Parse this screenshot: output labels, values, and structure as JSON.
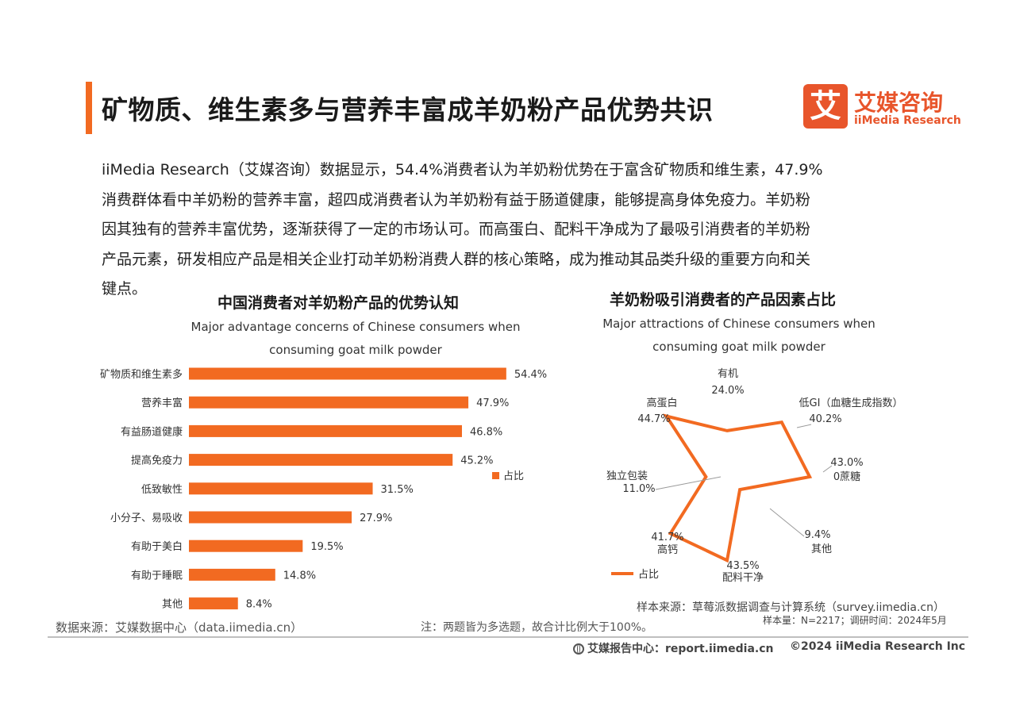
{
  "header": {
    "title": "矿物质、维生素多与营养丰富成羊奶粉产品优势共识",
    "logo_mark": "艾",
    "logo_cn": "艾媒咨询",
    "logo_en": "iiMedia Research"
  },
  "intro": {
    "lines": [
      "iiMedia Research（艾媒咨询）数据显示，54.4%消费者认为羊奶粉优势在于富含矿物质和维生素，47.9%",
      "消费群体看中羊奶粉的营养丰富，超四成消费者认为羊奶粉有益于肠道健康，能够提高身体免疫力。羊奶粉",
      "因其独有的营养丰富优势，逐渐获得了一定的市场认可。而高蛋白、配料干净成为了最吸引消费者的羊奶粉",
      "产品元素，研发相应产品是相关企业打动羊奶粉消费人群的核心策略，成为推动其品类升级的重要方向和关",
      "键点。"
    ]
  },
  "chart_data": [
    {
      "type": "bar",
      "orientation": "horizontal",
      "title": "中国消费者对羊奶粉产品的优势认知",
      "subtitle": [
        "Major advantage concerns of Chinese consumers when",
        "consuming goat milk powder"
      ],
      "categories": [
        "矿物质和维生素多",
        "营养丰富",
        "有益肠道健康",
        "提高免疫力",
        "低致敏性",
        "小分子、易吸收",
        "有助于美白",
        "有助于睡眠",
        "其他"
      ],
      "values": [
        54.4,
        47.9,
        46.8,
        45.2,
        31.5,
        27.9,
        19.5,
        14.8,
        8.4
      ],
      "value_labels": [
        "54.4%",
        "47.9%",
        "46.8%",
        "45.2%",
        "31.5%",
        "27.9%",
        "19.5%",
        "14.8%",
        "8.4%"
      ],
      "series": [
        {
          "name": "占比",
          "values": [
            54.4,
            47.9,
            46.8,
            45.2,
            31.5,
            27.9,
            19.5,
            14.8,
            8.4
          ]
        }
      ],
      "xlim": [
        0,
        60
      ],
      "legend": "right",
      "grid": false,
      "color": "#f26a21"
    },
    {
      "type": "radar",
      "title": "羊奶粉吸引消费者的产品因素占比",
      "subtitle": [
        "Major attractions of Chinese consumers when",
        "consuming goat milk powder"
      ],
      "categories": [
        "有机",
        "低GI（血糖生成指数）",
        "0蔗糖",
        "其他",
        "配料干净",
        "高钙",
        "独立包装",
        "高蛋白"
      ],
      "values": [
        24.0,
        40.2,
        43.0,
        9.4,
        43.5,
        41.7,
        11.0,
        44.7
      ],
      "value_labels": [
        "24.0%",
        "40.2%",
        "43.0%",
        "9.4%",
        "43.5%",
        "41.7%",
        "11.0%",
        "44.7%"
      ],
      "series": [
        {
          "name": "占比",
          "values": [
            24.0,
            40.2,
            43.0,
            9.4,
            43.5,
            41.7,
            11.0,
            44.7
          ]
        }
      ],
      "rlim": [
        0,
        50
      ],
      "legend": "bottom-left",
      "grid": false,
      "color": "#f26a21"
    }
  ],
  "footer": {
    "left_source": "数据来源：艾媒数据中心（data.iimedia.cn）",
    "note": "注：两题皆为多选题，故合计比例大于100%。",
    "right_source": "样本来源：草莓派数据调查与计算系统（survey.iimedia.cn）",
    "sample": "样本量：N=2217；调研时间：2024年5月",
    "report_center": "艾媒报告中心：report.iimedia.cn",
    "copyright": "©2024  iiMedia Research  Inc"
  }
}
